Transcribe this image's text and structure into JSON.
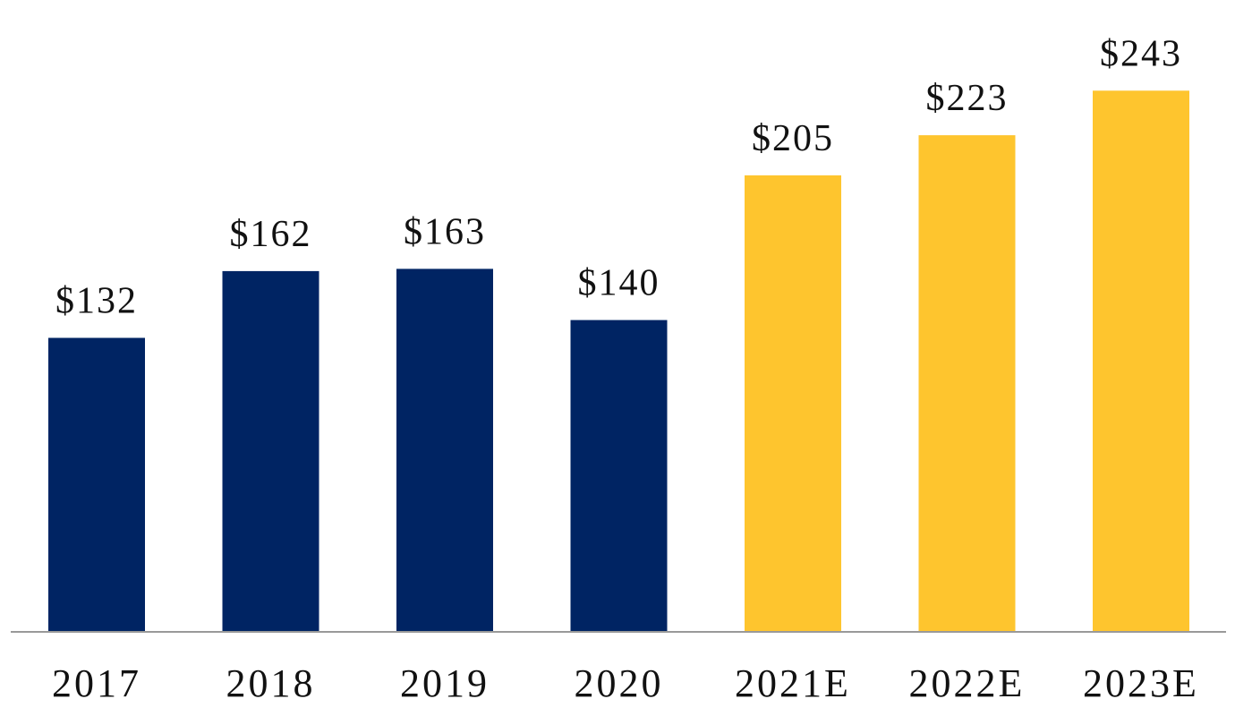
{
  "chart_data": {
    "type": "bar",
    "categories": [
      "2017",
      "2018",
      "2019",
      "2020",
      "2021E",
      "2022E",
      "2023E"
    ],
    "values": [
      132,
      162,
      163,
      140,
      205,
      223,
      243
    ],
    "value_labels": [
      "$132",
      "$162",
      "$163",
      "$140",
      "$205",
      "$223",
      "$243"
    ],
    "estimated": [
      false,
      false,
      false,
      false,
      true,
      true,
      true
    ],
    "title": "",
    "xlabel": "",
    "ylabel": "",
    "grid": false,
    "legend": "none",
    "colors": {
      "actual": "#002463",
      "estimate": "#FEC52E",
      "axis": "#999999",
      "text": "#111111"
    }
  }
}
